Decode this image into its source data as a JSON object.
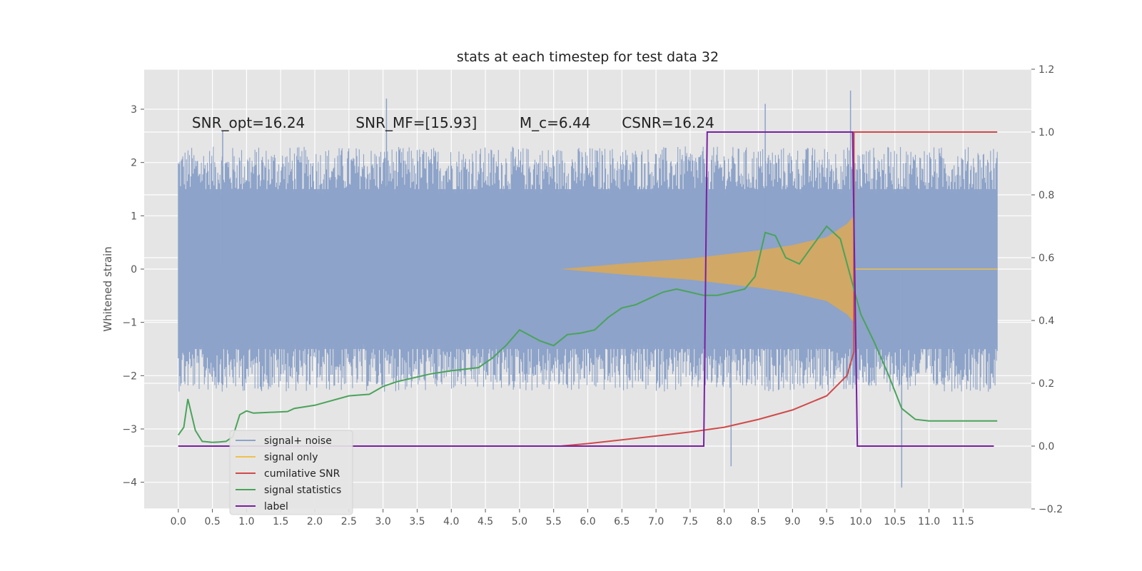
{
  "chart_data": {
    "type": "line",
    "title": "stats at each timestep for test data 32",
    "xlabel": "",
    "ylabel": "Whitened strain",
    "y2label": "",
    "xlim": [
      -0.5,
      12.5
    ],
    "ylim": [
      -4.5,
      3.75
    ],
    "y2lim": [
      -0.2,
      1.2
    ],
    "xticks": [
      "0.0",
      "0.5",
      "1.0",
      "1.5",
      "2.0",
      "2.5",
      "3.0",
      "3.5",
      "4.0",
      "4.5",
      "5.0",
      "5.5",
      "6.0",
      "6.5",
      "7.0",
      "7.5",
      "8.0",
      "8.5",
      "9.0",
      "9.5",
      "10.0",
      "10.5",
      "11.0",
      "11.5"
    ],
    "yticks": [
      "−4",
      "−3",
      "−2",
      "−1",
      "0",
      "1",
      "2",
      "3"
    ],
    "y2ticks": [
      "−0.2",
      "0.0",
      "0.2",
      "0.4",
      "0.6",
      "0.8",
      "1.0",
      "1.2"
    ],
    "grid": true,
    "legend_position": "bottom-left",
    "annotations": [
      {
        "text": "SNR_opt=16.24",
        "x": 0.2,
        "y": 2.65
      },
      {
        "text": "SNR_MF=[15.93]",
        "x": 2.6,
        "y": 2.65
      },
      {
        "text": "M_c=6.44",
        "x": 5.0,
        "y": 2.65
      },
      {
        "text": "CSNR=16.24",
        "x": 6.5,
        "y": 2.65
      }
    ],
    "series": [
      {
        "name": "signal+ noise",
        "axis": "left",
        "color": "#8da3c9",
        "x_range": [
          0.0,
          12.0
        ],
        "band_top": 1.6,
        "band_bottom": -1.6,
        "spikes": [
          {
            "x": 3.05,
            "y": 3.2
          },
          {
            "x": 9.85,
            "y": 3.35
          },
          {
            "x": 8.6,
            "y": 3.1
          },
          {
            "x": 10.6,
            "y": -4.1
          },
          {
            "x": 8.1,
            "y": -3.7
          },
          {
            "x": 0.65,
            "y": 2.6
          }
        ]
      },
      {
        "name": "signal only",
        "axis": "left",
        "color": "#f0c04a",
        "envelope": [
          {
            "x": 5.6,
            "y": 0.0
          },
          {
            "x": 6.5,
            "y": 0.1
          },
          {
            "x": 7.5,
            "y": 0.2
          },
          {
            "x": 8.5,
            "y": 0.35
          },
          {
            "x": 9.0,
            "y": 0.45
          },
          {
            "x": 9.5,
            "y": 0.6
          },
          {
            "x": 9.8,
            "y": 0.85
          },
          {
            "x": 9.9,
            "y": 1.0
          }
        ]
      },
      {
        "name": "cumilative SNR",
        "axis": "right",
        "color": "#d04a4a",
        "points": [
          [
            0.0,
            0.0
          ],
          [
            5.6,
            0.0
          ],
          [
            6.0,
            0.008
          ],
          [
            6.5,
            0.02
          ],
          [
            7.0,
            0.032
          ],
          [
            7.5,
            0.045
          ],
          [
            8.0,
            0.06
          ],
          [
            8.5,
            0.085
          ],
          [
            9.0,
            0.115
          ],
          [
            9.5,
            0.16
          ],
          [
            9.8,
            0.225
          ],
          [
            9.9,
            0.3
          ],
          [
            9.9,
            1.0
          ],
          [
            12.0,
            1.0
          ]
        ]
      },
      {
        "name": "signal statistics",
        "axis": "right",
        "color": "#4aa35a",
        "points": [
          [
            0.0,
            0.035
          ],
          [
            0.08,
            0.06
          ],
          [
            0.14,
            0.15
          ],
          [
            0.25,
            0.05
          ],
          [
            0.35,
            0.015
          ],
          [
            0.5,
            0.012
          ],
          [
            0.6,
            0.013
          ],
          [
            0.7,
            0.015
          ],
          [
            0.8,
            0.03
          ],
          [
            0.9,
            0.1
          ],
          [
            1.0,
            0.112
          ],
          [
            1.1,
            0.105
          ],
          [
            1.3,
            0.107
          ],
          [
            1.6,
            0.11
          ],
          [
            1.7,
            0.12
          ],
          [
            2.0,
            0.13
          ],
          [
            2.5,
            0.16
          ],
          [
            2.8,
            0.165
          ],
          [
            3.0,
            0.19
          ],
          [
            3.2,
            0.205
          ],
          [
            3.5,
            0.22
          ],
          [
            3.7,
            0.23
          ],
          [
            4.0,
            0.24
          ],
          [
            4.4,
            0.25
          ],
          [
            4.6,
            0.28
          ],
          [
            4.8,
            0.32
          ],
          [
            5.0,
            0.37
          ],
          [
            5.3,
            0.335
          ],
          [
            5.5,
            0.32
          ],
          [
            5.7,
            0.355
          ],
          [
            5.9,
            0.36
          ],
          [
            6.1,
            0.37
          ],
          [
            6.3,
            0.41
          ],
          [
            6.5,
            0.44
          ],
          [
            6.7,
            0.45
          ],
          [
            6.9,
            0.47
          ],
          [
            7.1,
            0.49
          ],
          [
            7.3,
            0.5
          ],
          [
            7.5,
            0.49
          ],
          [
            7.7,
            0.48
          ],
          [
            7.9,
            0.48
          ],
          [
            8.1,
            0.49
          ],
          [
            8.3,
            0.5
          ],
          [
            8.45,
            0.54
          ],
          [
            8.6,
            0.68
          ],
          [
            8.75,
            0.67
          ],
          [
            8.9,
            0.6
          ],
          [
            9.1,
            0.58
          ],
          [
            9.3,
            0.64
          ],
          [
            9.5,
            0.7
          ],
          [
            9.7,
            0.66
          ],
          [
            9.9,
            0.5
          ],
          [
            10.0,
            0.42
          ],
          [
            10.2,
            0.33
          ],
          [
            10.4,
            0.23
          ],
          [
            10.6,
            0.12
          ],
          [
            10.8,
            0.085
          ],
          [
            11.0,
            0.08
          ],
          [
            11.5,
            0.08
          ],
          [
            12.0,
            0.08
          ]
        ]
      },
      {
        "name": "label",
        "axis": "right",
        "color": "#7a1fa2",
        "points": [
          [
            0.0,
            0.0
          ],
          [
            7.7,
            0.0
          ],
          [
            7.75,
            1.0
          ],
          [
            9.88,
            1.0
          ],
          [
            9.95,
            0.0
          ],
          [
            11.95,
            0.0
          ]
        ]
      }
    ]
  }
}
